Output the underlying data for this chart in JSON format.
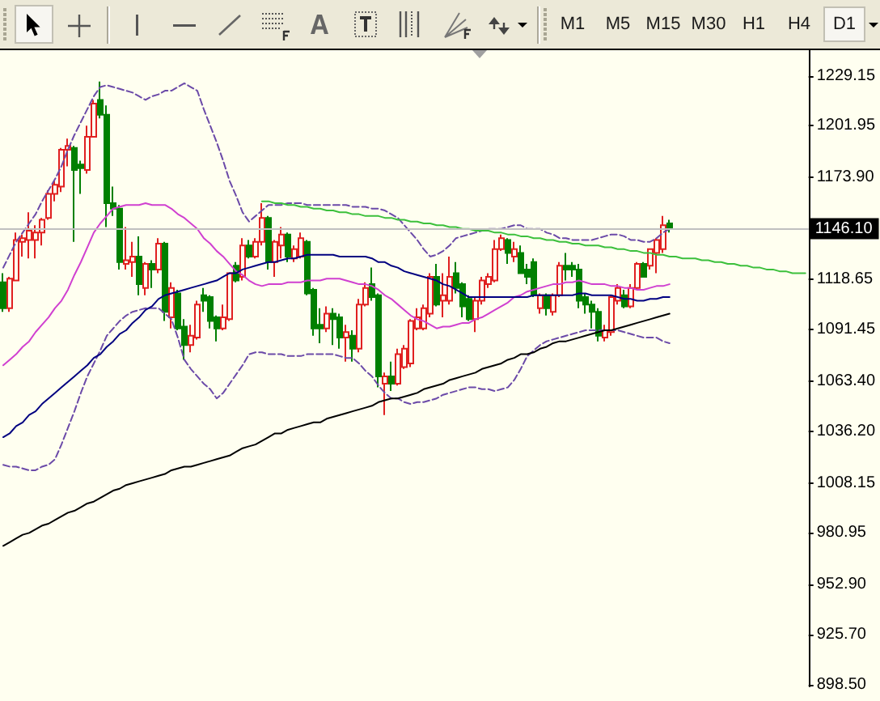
{
  "chart_data": {
    "type": "candlestick",
    "categories": [
      null,
      null,
      null,
      null,
      null,
      null,
      null,
      null,
      null,
      null,
      null,
      null,
      null,
      null,
      null,
      null,
      null,
      null,
      null,
      null,
      null,
      null,
      null,
      null,
      null,
      null,
      null,
      null,
      null,
      null,
      null,
      null,
      null,
      null,
      null,
      null,
      null,
      null,
      null,
      null,
      null,
      null,
      null,
      null,
      null,
      null,
      null,
      null,
      null,
      null,
      null,
      null,
      null,
      null,
      null,
      null,
      null,
      null,
      null,
      null,
      null,
      null,
      null,
      null,
      null,
      null,
      null,
      null,
      null,
      null,
      null,
      null,
      null,
      null,
      null,
      null,
      null,
      null,
      null,
      null,
      null,
      null,
      null,
      null,
      null,
      null,
      null,
      null,
      null,
      null,
      null,
      null,
      null,
      null,
      null,
      null,
      null,
      null,
      null,
      null,
      null,
      null,
      null,
      null,
      null,
      null,
      null,
      null,
      null,
      null,
      null,
      null,
      null,
      null,
      null,
      null,
      null,
      null,
      null,
      null,
      null,
      null,
      null,
      null,
      null
    ],
    "ohlc": [
      [
        1117,
        1122,
        1101,
        1103
      ],
      [
        1103,
        1120,
        1101,
        1119
      ],
      [
        1118,
        1144,
        1118,
        1140
      ],
      [
        1139,
        1143,
        1131,
        1141
      ],
      [
        1140,
        1155,
        1130,
        1145
      ],
      [
        1140,
        1148,
        1130,
        1144
      ],
      [
        1144,
        1152,
        1137,
        1151
      ],
      [
        1152,
        1167,
        1151,
        1165
      ],
      [
        1165,
        1172,
        1161,
        1170
      ],
      [
        1169,
        1190,
        1166,
        1189
      ],
      [
        1189,
        1195,
        1180,
        1191
      ],
      [
        1190,
        1191,
        1139,
        1178
      ],
      [
        1181,
        1183,
        1165,
        1179
      ],
      [
        1178,
        1202,
        1176,
        1196
      ],
      [
        1196,
        1216,
        1196,
        1214
      ],
      [
        1216,
        1226,
        1206,
        1208
      ],
      [
        1208,
        1213,
        1147,
        1160
      ],
      [
        1160,
        1169,
        1153,
        1157
      ],
      [
        1157,
        1159,
        1124,
        1128
      ],
      [
        1127,
        1147,
        1124,
        1129
      ],
      [
        1128,
        1139,
        1120,
        1131
      ],
      [
        1131,
        1142,
        1110,
        1116
      ],
      [
        1114,
        1128,
        1110,
        1127
      ],
      [
        1127,
        1129,
        1114,
        1124
      ],
      [
        1124,
        1141,
        1122,
        1138
      ],
      [
        1138,
        1139,
        1096,
        1101
      ],
      [
        1098,
        1117,
        1092,
        1114
      ],
      [
        1111,
        1113,
        1091,
        1092
      ],
      [
        1093,
        1097,
        1075,
        1083
      ],
      [
        1083,
        1094,
        1079,
        1088
      ],
      [
        1087,
        1107,
        1086,
        1105
      ],
      [
        1110,
        1114,
        1101,
        1107
      ],
      [
        1109,
        1110,
        1092,
        1096
      ],
      [
        1098,
        1099,
        1085,
        1092
      ],
      [
        1092,
        1105,
        1091,
        1098
      ],
      [
        1097,
        1122,
        1096,
        1122
      ],
      [
        1126,
        1128,
        1117,
        1118
      ],
      [
        1120,
        1141,
        1118,
        1137
      ],
      [
        1137,
        1140,
        1130,
        1131
      ],
      [
        1131,
        1141,
        1130,
        1139
      ],
      [
        1139,
        1160,
        1137,
        1152
      ],
      [
        1152,
        1153,
        1124,
        1128
      ],
      [
        1128,
        1140,
        1120,
        1139
      ],
      [
        1137,
        1147,
        1130,
        1143
      ],
      [
        1143,
        1144,
        1128,
        1131
      ],
      [
        1130,
        1137,
        1128,
        1135
      ],
      [
        1131,
        1144,
        1130,
        1141
      ],
      [
        1139,
        1140,
        1110,
        1111
      ],
      [
        1113,
        1114,
        1088,
        1092
      ],
      [
        1094,
        1103,
        1084,
        1092
      ],
      [
        1092,
        1104,
        1090,
        1100
      ],
      [
        1100,
        1103,
        1083,
        1097
      ],
      [
        1098,
        1100,
        1081,
        1087
      ],
      [
        1087,
        1094,
        1074,
        1090
      ],
      [
        1088,
        1091,
        1074,
        1081
      ],
      [
        1081,
        1108,
        1079,
        1105
      ],
      [
        1105,
        1117,
        1104,
        1114
      ],
      [
        1116,
        1125,
        1107,
        1109
      ],
      [
        1110,
        1111,
        1060,
        1066
      ],
      [
        1062,
        1068,
        1045,
        1066
      ],
      [
        1066,
        1074,
        1058,
        1062
      ],
      [
        1062,
        1081,
        1061,
        1078
      ],
      [
        1071,
        1083,
        1070,
        1081
      ],
      [
        1073,
        1097,
        1071,
        1096
      ],
      [
        1092,
        1103,
        1091,
        1098
      ],
      [
        1092,
        1105,
        1091,
        1103
      ],
      [
        1100,
        1122,
        1098,
        1120
      ],
      [
        1120,
        1127,
        1104,
        1105
      ],
      [
        1107,
        1122,
        1098,
        1110
      ],
      [
        1107,
        1131,
        1105,
        1120
      ],
      [
        1122,
        1128,
        1111,
        1114
      ],
      [
        1116,
        1117,
        1098,
        1104
      ],
      [
        1108,
        1110,
        1096,
        1097
      ],
      [
        1097,
        1109,
        1090,
        1107
      ],
      [
        1107,
        1120,
        1105,
        1118
      ],
      [
        1116,
        1122,
        1114,
        1120
      ],
      [
        1118,
        1140,
        1117,
        1135
      ],
      [
        1135,
        1143,
        1134,
        1141
      ],
      [
        1140,
        1141,
        1127,
        1133
      ],
      [
        1131,
        1139,
        1128,
        1135
      ],
      [
        1133,
        1137,
        1122,
        1122
      ],
      [
        1124,
        1127,
        1116,
        1120
      ],
      [
        1128,
        1130,
        1109,
        1110
      ],
      [
        1103,
        1111,
        1100,
        1110
      ],
      [
        1110,
        1111,
        1099,
        1103
      ],
      [
        1101,
        1111,
        1099,
        1110
      ],
      [
        1110,
        1128,
        1109,
        1126
      ],
      [
        1126,
        1133,
        1118,
        1124
      ],
      [
        1126,
        1128,
        1120,
        1124
      ],
      [
        1124,
        1127,
        1103,
        1107
      ],
      [
        1109,
        1111,
        1100,
        1105
      ],
      [
        1105,
        1107,
        1092,
        1101
      ],
      [
        1101,
        1103,
        1085,
        1088
      ],
      [
        1087,
        1094,
        1085,
        1091
      ],
      [
        1090,
        1110,
        1088,
        1109
      ],
      [
        1107,
        1116,
        1105,
        1114
      ],
      [
        1110,
        1113,
        1103,
        1104
      ],
      [
        1104,
        1116,
        1103,
        1114
      ],
      [
        1114,
        1128,
        1113,
        1127
      ],
      [
        1127,
        1128,
        1120,
        1120
      ],
      [
        1126,
        1135,
        1124,
        1135
      ],
      [
        1133,
        1141,
        1122,
        1140
      ],
      [
        1135,
        1153,
        1133,
        1148
      ],
      [
        1149,
        1151,
        1144,
        1146.1
      ],
      null,
      null,
      null,
      null,
      null,
      null,
      null,
      null,
      null,
      null,
      null,
      null,
      null,
      null,
      null,
      null,
      null,
      null,
      null,
      null,
      null
    ],
    "colors": [
      "#008000",
      "#e02020",
      "#e02020",
      "#e02020",
      "#e02020",
      "#e02020",
      "#e02020",
      "#e02020",
      "#e02020",
      "#e02020",
      "#e02020",
      "#008000",
      "#008000",
      "#e02020",
      "#e02020",
      "#008000",
      "#008000",
      "#008000",
      "#008000",
      "#e02020",
      "#e02020",
      "#008000",
      "#e02020",
      "#008000",
      "#e02020",
      "#008000",
      "#e02020",
      "#008000",
      "#008000",
      "#e02020",
      "#e02020",
      "#008000",
      "#008000",
      "#008000",
      "#e02020",
      "#e02020",
      "#008000",
      "#e02020",
      "#008000",
      "#e02020",
      "#e02020",
      "#008000",
      "#e02020",
      "#e02020",
      "#008000",
      "#e02020",
      "#e02020",
      "#008000",
      "#008000",
      "#008000",
      "#e02020",
      "#008000",
      "#008000",
      "#e02020",
      "#008000",
      "#e02020",
      "#e02020",
      "#008000",
      "#008000",
      "#e02020",
      "#008000",
      "#e02020",
      "#e02020",
      "#e02020",
      "#e02020",
      "#e02020",
      "#e02020",
      "#008000",
      "#e02020",
      "#e02020",
      "#008000",
      "#008000",
      "#008000",
      "#e02020",
      "#e02020",
      "#e02020",
      "#e02020",
      "#e02020",
      "#008000",
      "#e02020",
      "#008000",
      "#008000",
      "#008000",
      "#e02020",
      "#008000",
      "#e02020",
      "#e02020",
      "#008000",
      "#008000",
      "#008000",
      "#008000",
      "#008000",
      "#008000",
      "#e02020",
      "#e02020",
      "#e02020",
      "#008000",
      "#e02020",
      "#e02020",
      "#008000",
      "#e02020",
      "#e02020",
      "#e02020",
      "#008000",
      null,
      null,
      null,
      null,
      null,
      null,
      null,
      null,
      null,
      null,
      null,
      null,
      null,
      null,
      null,
      null,
      null,
      null,
      null,
      null,
      null
    ],
    "series": [
      {
        "type": "line",
        "color": "#6b4aa8",
        "line_style": "dashed",
        "values": [
          1125,
          1132,
          1139,
          1144,
          1149,
          1154,
          1161,
          1167,
          1173,
          1180,
          1189,
          1197,
          1204,
          1211,
          1218,
          1223,
          1224,
          1223,
          1222,
          1221,
          1220,
          1218,
          1216,
          1218,
          1219,
          1221,
          1221,
          1223,
          1225,
          1223,
          1221,
          1211,
          1202,
          1193,
          1183,
          1172,
          1164,
          1155,
          1150,
          1153,
          1156,
          1159,
          1159,
          1159,
          1160,
          1160,
          1160,
          1159,
          1159,
          1159,
          1159,
          1159,
          1159,
          1159,
          1158,
          1158,
          1158,
          1157,
          1157,
          1156,
          1154,
          1152,
          1148,
          1144,
          1140,
          1135,
          1131,
          1132,
          1134,
          1137,
          1141,
          1142,
          1143,
          1144,
          1145,
          1146,
          1146,
          1146,
          1147,
          1148,
          1148,
          1146,
          1146,
          1146,
          1144,
          1143,
          1141,
          1141,
          1140,
          1140,
          1140,
          1140,
          1141,
          1142,
          1143,
          1143,
          1142,
          1140,
          1140,
          1139,
          1139,
          1141,
          1144,
          1146,
          null,
          null,
          null,
          null,
          null,
          null,
          null,
          null,
          null,
          null,
          null,
          null,
          null,
          null,
          null,
          null,
          null,
          null,
          null,
          null,
          null
        ]
      },
      {
        "type": "line",
        "color": "#6b4aa8",
        "line_style": "dashed",
        "values": [
          1018,
          1017,
          1017,
          1016,
          1015,
          1015,
          1017,
          1018,
          1021,
          1029,
          1038,
          1047,
          1057,
          1066,
          1073,
          1080,
          1088,
          1092,
          1096,
          1099,
          1101,
          1102,
          1103,
          1103,
          1103,
          1100,
          1097,
          1087,
          1075,
          1070,
          1066,
          1062,
          1059,
          1054,
          1057,
          1062,
          1067,
          1072,
          1078,
          1079,
          1079,
          1078,
          1078,
          1078,
          1077,
          1077,
          1077,
          1078,
          1078,
          1078,
          1078,
          1078,
          1077,
          1076,
          1076,
          1073,
          1069,
          1066,
          1061,
          1057,
          1054,
          1054,
          1052,
          1051,
          1052,
          1052,
          1053,
          1054,
          1056,
          1057,
          1058,
          1059,
          1060,
          1060,
          1059,
          1059,
          1058,
          1059,
          1060,
          1064,
          1070,
          1077,
          1080,
          1083,
          1085,
          1086,
          1087,
          1088,
          1089,
          1090,
          1091,
          1091,
          1091,
          1091,
          1091,
          1091,
          1090,
          1089,
          1088,
          1087,
          1087,
          1087,
          1085,
          1084,
          null,
          null,
          null,
          null,
          null,
          null,
          null,
          null,
          null,
          null,
          null,
          null,
          null,
          null,
          null,
          null,
          null,
          null,
          null,
          null,
          null
        ]
      },
      {
        "type": "line",
        "color": "#d040d0",
        "values": [
          1072,
          1075,
          1078,
          1082,
          1085,
          1090,
          1094,
          1098,
          1103,
          1107,
          1113,
          1121,
          1128,
          1136,
          1144,
          1149,
          1153,
          1157,
          1158,
          1159,
          1159,
          1159,
          1160,
          1159,
          1159,
          1159,
          1157,
          1154,
          1152,
          1149,
          1146,
          1141,
          1138,
          1134,
          1131,
          1127,
          1123,
          1121,
          1118,
          1116,
          1115,
          1116,
          1116,
          1116,
          1117,
          1117,
          1117,
          1118,
          1118,
          1118,
          1119,
          1119,
          1119,
          1118,
          1117,
          1116,
          1116,
          1115,
          1113,
          1110,
          1108,
          1105,
          1102,
          1099,
          1097,
          1096,
          1094,
          1092,
          1093,
          1093,
          1094,
          1095,
          1095,
          1097,
          1098,
          1100,
          1102,
          1104,
          1106,
          1109,
          1110,
          1112,
          1113,
          1114,
          1115,
          1116,
          1116,
          1117,
          1117,
          1118,
          1117,
          1116,
          1116,
          1116,
          1115,
          1115,
          1114,
          1114,
          1113,
          1113,
          1114,
          1115,
          1115,
          1116,
          null,
          null,
          null,
          null,
          null,
          null,
          null,
          null,
          null,
          null,
          null,
          null,
          null,
          null,
          null,
          null,
          null,
          null,
          null,
          null,
          null
        ]
      },
      {
        "type": "line",
        "color": "#000080",
        "values": [
          1033,
          1035,
          1039,
          1041,
          1045,
          1047,
          1051,
          1054,
          1057,
          1060,
          1063,
          1066,
          1069,
          1072,
          1076,
          1078,
          1082,
          1085,
          1089,
          1091,
          1095,
          1098,
          1102,
          1104,
          1108,
          1110,
          1111,
          1112,
          1113,
          1114,
          1115,
          1116,
          1117,
          1118,
          1120,
          1122,
          1122,
          1124,
          1125,
          1126,
          1127,
          1128,
          1128,
          1129,
          1130,
          1130,
          1131,
          1132,
          1132,
          1132,
          1132,
          1132,
          1131,
          1131,
          1131,
          1131,
          1131,
          1130,
          1128,
          1128,
          1126,
          1125,
          1123,
          1122,
          1121,
          1120,
          1119,
          1118,
          1116,
          1115,
          1113,
          1111,
          1109,
          1109,
          1109,
          1109,
          1109,
          1109,
          1109,
          1109,
          1109,
          1109,
          1110,
          1110,
          1110,
          1110,
          1110,
          1110,
          1110,
          1111,
          1111,
          1110,
          1110,
          1110,
          1110,
          1109,
          1108,
          1108,
          1107,
          1107,
          1108,
          1108,
          1109,
          1109,
          null,
          null,
          null,
          null,
          null,
          null,
          null,
          null,
          null,
          null,
          null,
          null,
          null,
          null,
          null,
          null,
          null,
          null,
          null,
          null,
          null
        ]
      },
      {
        "type": "line",
        "color": "#000000",
        "values": [
          974,
          976,
          978,
          980,
          981,
          983,
          985,
          986,
          988,
          990,
          992,
          993,
          995,
          997,
          998,
          1000,
          1002,
          1004,
          1005,
          1007,
          1008,
          1009,
          1010,
          1011,
          1012,
          1013,
          1015,
          1016,
          1017,
          1017,
          1018,
          1019,
          1020,
          1021,
          1022,
          1023,
          1025,
          1027,
          1028,
          1029,
          1031,
          1033,
          1035,
          1035,
          1037,
          1038,
          1039,
          1040,
          1041,
          1041,
          1043,
          1044,
          1045,
          1046,
          1047,
          1048,
          1049,
          1050,
          1052,
          1053,
          1054,
          1054,
          1055,
          1056,
          1057,
          1059,
          1060,
          1061,
          1062,
          1064,
          1065,
          1066,
          1067,
          1068,
          1070,
          1071,
          1072,
          1073,
          1075,
          1076,
          1078,
          1078,
          1079,
          1081,
          1082,
          1084,
          1085,
          1085,
          1086,
          1087,
          1088,
          1089,
          1090,
          1091,
          1091,
          1092,
          1093,
          1094,
          1095,
          1096,
          1097,
          1098,
          1099,
          1100,
          null,
          null,
          null,
          null,
          null,
          null,
          null,
          null,
          null,
          null,
          null,
          null,
          null,
          null,
          null,
          null,
          null,
          null,
          null,
          null,
          null
        ]
      },
      {
        "type": "line",
        "color": "#3cc03c",
        "values": [
          null,
          null,
          null,
          null,
          null,
          null,
          null,
          null,
          null,
          null,
          null,
          null,
          null,
          null,
          null,
          null,
          null,
          null,
          null,
          null,
          null,
          null,
          null,
          null,
          null,
          null,
          null,
          null,
          null,
          null,
          null,
          null,
          null,
          null,
          null,
          null,
          null,
          null,
          null,
          null,
          1161,
          1161,
          1160,
          1160,
          1159,
          1159,
          1158,
          1158,
          1157,
          1157,
          1156,
          1156,
          1155,
          1155,
          1154,
          1154,
          1153,
          1153,
          1153,
          1152,
          1152,
          1151,
          1151,
          1150,
          1150,
          1149,
          1149,
          1148,
          1148,
          1147,
          1147,
          1146,
          1146,
          1145,
          1145,
          1145,
          1144,
          1144,
          1143,
          1143,
          1142,
          1142,
          1141,
          1141,
          1140,
          1140,
          1139,
          1139,
          1138,
          1138,
          1137,
          1137,
          1137,
          1136,
          1136,
          1135,
          1135,
          1134,
          1134,
          1133,
          1133,
          1132,
          1132,
          1131,
          1131,
          1130,
          1130,
          1130,
          1129,
          1129,
          1128,
          1128,
          1127,
          1127,
          1126,
          1126,
          1125,
          1125,
          1124,
          1124,
          1123,
          1123,
          1122,
          1122,
          1122
        ]
      }
    ],
    "ylim": [
      897.7,
      1243
    ],
    "yticks": [
      1229.15,
      1201.95,
      {
        "value": 1173.9,
        "label": "1173.90"
      },
      1118.65,
      1091.45,
      {
        "value": 1063.4,
        "label": "1063.40"
      },
      {
        "value": 1036.2,
        "label": "1036.20"
      },
      1008.15,
      980.95,
      {
        "value": 952.9,
        "label": "952.90"
      },
      {
        "value": 925.7,
        "label": "925.70"
      },
      {
        "value": 898.5,
        "label": "898.50"
      }
    ],
    "tick_labels": "y",
    "marker": "none",
    "ref_lines": [
      {
        "axis": "y",
        "value": 1146.1,
        "label": "1146.10",
        "color": "#c0c0c0"
      }
    ],
    "annotations": [
      "M1",
      "M5",
      "M15",
      "M30",
      "H1",
      "H4",
      "D1"
    ]
  }
}
